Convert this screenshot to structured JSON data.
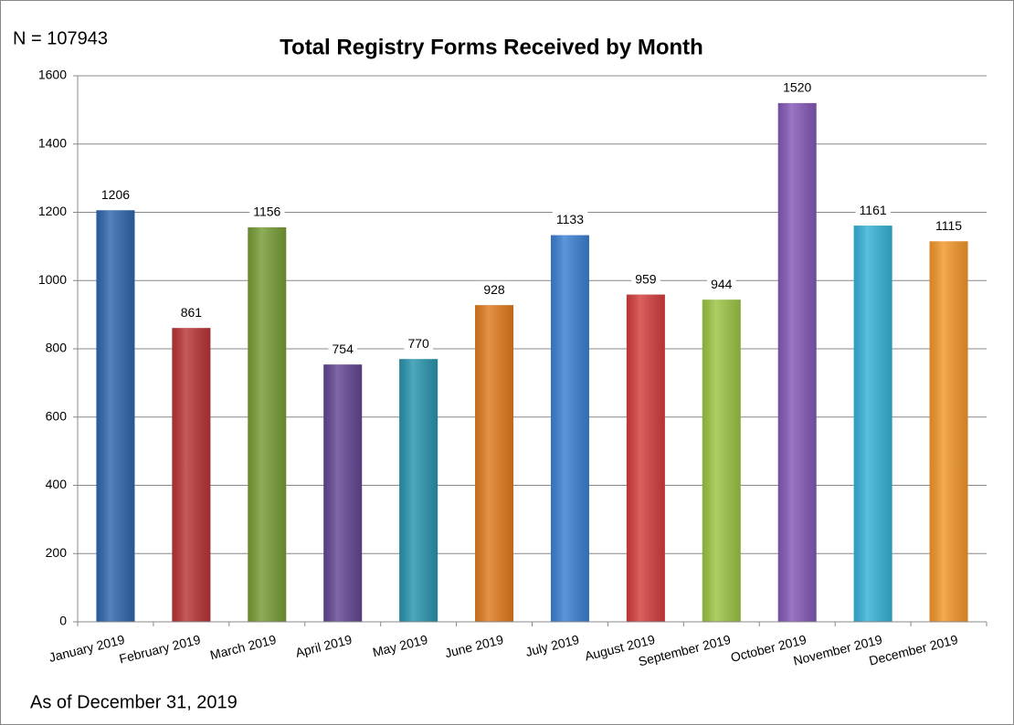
{
  "chart_data": {
    "type": "bar",
    "title": "Total Registry Forms Received by Month",
    "annotations": [
      "N = 107943",
      "As of December 31, 2019"
    ],
    "categories": [
      "January 2019",
      "February 2019",
      "March 2019",
      "April 2019",
      "May 2019",
      "June 2019",
      "July 2019",
      "August 2019",
      "September 2019",
      "October 2019",
      "November 2019",
      "December 2019"
    ],
    "values": [
      1206,
      861,
      1156,
      754,
      770,
      928,
      1133,
      959,
      944,
      1520,
      1161,
      1115
    ],
    "colors": [
      "#2e66ad",
      "#b83436",
      "#779c36",
      "#634692",
      "#2894ae",
      "#e07a1e",
      "#3b7fd2",
      "#d33d3d",
      "#9cc444",
      "#8458b8",
      "#34b2d6",
      "#f3962a"
    ],
    "ylim": [
      0,
      1600
    ],
    "yticks": [
      0,
      200,
      400,
      600,
      800,
      1000,
      1200,
      1400,
      1600
    ],
    "grid": true
  }
}
